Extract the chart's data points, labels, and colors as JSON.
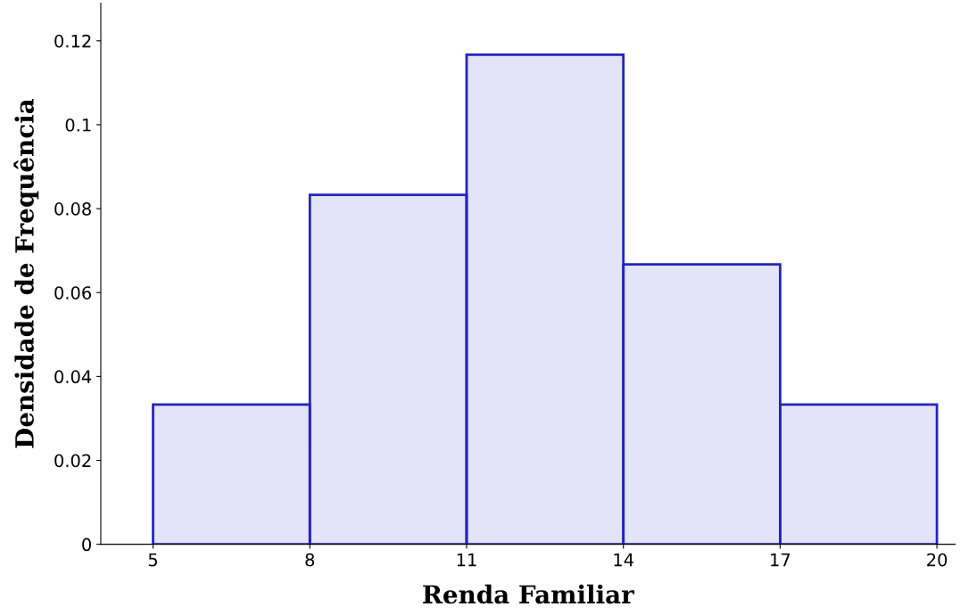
{
  "chart_data": {
    "type": "histogram",
    "xlabel": "Renda Familiar",
    "ylabel": "Densidade de Frequência",
    "bins": [
      5,
      8,
      11,
      14,
      17,
      20
    ],
    "values": [
      0.0333,
      0.0833,
      0.1167,
      0.0667,
      0.0333
    ],
    "color": "#2323c8",
    "xlim": [
      4,
      20.35
    ],
    "ylim": [
      0,
      0.129
    ],
    "xticks": [
      5,
      8,
      11,
      14,
      17,
      20
    ],
    "yticks": [
      0,
      0.02,
      0.04,
      0.06,
      0.08,
      {
        "value": 0.1,
        "label": "0.1"
      },
      0.12
    ],
    "grid": false
  }
}
